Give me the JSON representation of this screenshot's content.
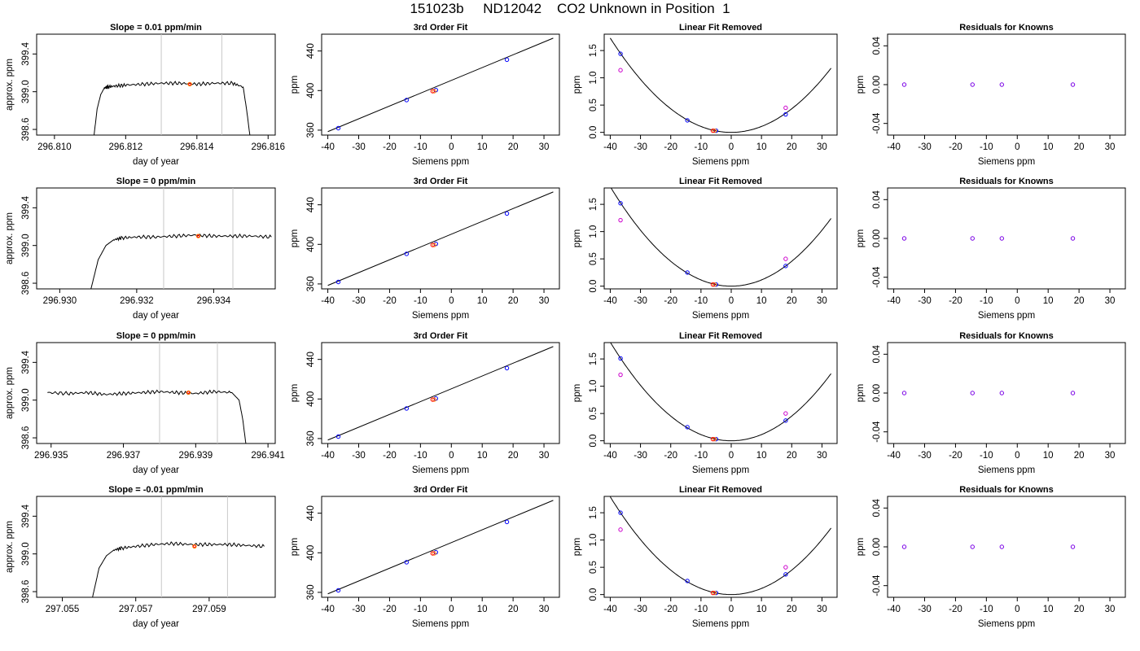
{
  "page_title": "151023b     ND12042    CO2 Unknown in Position  1",
  "labels": {
    "time_xlabel": "day of year",
    "time_ylabel": "approx. ppm",
    "siemens_xlabel": "Siemens ppm",
    "ppm_ylabel": "ppm",
    "fit_title": "3rd Order Fit",
    "linear_title": "Linear Fit Removed",
    "resid_title": "Residuals for Knowns"
  },
  "colors": {
    "line": "#000000",
    "known": "#0000ff",
    "known_alt": "#cc00cc",
    "unknown": "#ff0000",
    "unknown_alt": "#ff8800",
    "window": "#c8c8c8"
  },
  "chart_data": [
    {
      "type": "line",
      "row": 1,
      "title": "Slope =  0.01  ppm/min",
      "xlabel": "day of year",
      "ylabel": "approx. ppm",
      "xlim": [
        296.8095,
        296.8162
      ],
      "ylim": [
        398.54,
        399.61
      ],
      "xticks": [
        296.81,
        296.812,
        296.814,
        296.816
      ],
      "xtick_labels": [
        "296.810",
        "296.812",
        "296.814",
        "296.816"
      ],
      "yticks": [
        398.6,
        399.0,
        399.4
      ],
      "ytick_labels": [
        "398.6",
        "399.0",
        "399.4"
      ],
      "windows": [
        296.813,
        296.8147
      ],
      "series": [
        {
          "x": [
            296.8111,
            296.8112,
            296.8113,
            296.8114,
            296.8115,
            296.8117,
            296.812,
            296.8125,
            296.813,
            296.8135,
            296.814,
            296.8145,
            296.815,
            296.8153,
            296.8154,
            296.8155
          ],
          "y": [
            398.5,
            398.82,
            398.97,
            399.04,
            399.05,
            399.06,
            399.07,
            399.08,
            399.09,
            399.09,
            399.08,
            399.09,
            399.09,
            399.05,
            398.8,
            398.5
          ]
        }
      ],
      "marker": {
        "x": 296.8138,
        "y": 399.08
      }
    },
    {
      "type": "line",
      "row": 2,
      "title": "Slope =  0  ppm/min",
      "xlabel": "day of year",
      "ylabel": "approx. ppm",
      "xlim": [
        296.9294,
        296.9356
      ],
      "ylim": [
        398.54,
        399.61
      ],
      "xticks": [
        296.93,
        296.932,
        296.934
      ],
      "xtick_labels": [
        "296.930",
        "296.932",
        "296.934"
      ],
      "yticks": [
        398.6,
        399.0,
        399.4
      ],
      "ytick_labels": [
        "398.6",
        "399.0",
        "399.4"
      ],
      "windows": [
        296.9327,
        296.9345
      ],
      "series": [
        {
          "x": [
            296.9308,
            296.931,
            296.9312,
            296.9314,
            296.9316,
            296.932,
            296.9325,
            296.933,
            296.9335,
            296.934,
            296.9345,
            296.935,
            296.9355
          ],
          "y": [
            398.52,
            398.85,
            399.0,
            399.06,
            399.08,
            399.09,
            399.09,
            399.1,
            399.11,
            399.1,
            399.1,
            399.1,
            399.09
          ]
        }
      ],
      "marker": {
        "x": 296.9336,
        "y": 399.1
      }
    },
    {
      "type": "line",
      "row": 3,
      "title": "Slope =  0  ppm/min",
      "xlabel": "day of year",
      "ylabel": "approx. ppm",
      "xlim": [
        296.9346,
        296.9412
      ],
      "ylim": [
        398.54,
        399.61
      ],
      "xticks": [
        296.935,
        296.937,
        296.939,
        296.941
      ],
      "xtick_labels": [
        "296.935",
        "296.937",
        "296.939",
        "296.941"
      ],
      "yticks": [
        398.6,
        399.0,
        399.4
      ],
      "ytick_labels": [
        "398.6",
        "399.0",
        "399.4"
      ],
      "windows": [
        296.938,
        296.9396
      ],
      "series": [
        {
          "x": [
            296.9349,
            296.9355,
            296.936,
            296.9365,
            296.937,
            296.9375,
            296.938,
            296.9385,
            296.939,
            296.9395,
            296.94,
            296.9402,
            296.9403,
            296.9404
          ],
          "y": [
            399.08,
            399.07,
            399.08,
            399.06,
            399.07,
            399.08,
            399.09,
            399.08,
            399.07,
            399.09,
            399.08,
            399.0,
            398.8,
            398.5
          ]
        }
      ],
      "marker": {
        "x": 296.9388,
        "y": 399.08
      }
    },
    {
      "type": "line",
      "row": 4,
      "title": "Slope =  -0.01  ppm/min",
      "xlabel": "day of year",
      "ylabel": "approx. ppm",
      "xlim": [
        297.0543,
        297.0608
      ],
      "ylim": [
        398.54,
        399.61
      ],
      "xticks": [
        297.055,
        297.057,
        297.059
      ],
      "xtick_labels": [
        "297.055",
        "297.057",
        "297.059"
      ],
      "yticks": [
        398.6,
        399.0,
        399.4
      ],
      "ytick_labels": [
        "398.6",
        "399.0",
        "399.4"
      ],
      "windows": [
        297.0577,
        297.0595
      ],
      "series": [
        {
          "x": [
            297.0558,
            297.056,
            297.0562,
            297.0564,
            297.0566,
            297.057,
            297.0575,
            297.058,
            297.0585,
            297.059,
            297.0595,
            297.06,
            297.0605
          ],
          "y": [
            398.5,
            398.85,
            398.98,
            399.04,
            399.06,
            399.08,
            399.1,
            399.11,
            399.1,
            399.1,
            399.1,
            399.09,
            399.08
          ]
        }
      ],
      "marker": {
        "x": 297.0586,
        "y": 399.08
      }
    },
    {
      "type": "scatter",
      "row": 1,
      "title": "3rd Order Fit",
      "xlabel": "Siemens ppm",
      "ylabel": "ppm",
      "xlim": [
        -42,
        35
      ],
      "ylim": [
        355,
        457
      ],
      "xticks": [
        -40,
        -30,
        -20,
        -10,
        0,
        10,
        20,
        30
      ],
      "xtick_labels": [
        "-40",
        "-30",
        "-20",
        "-10",
        "0",
        "10",
        "20",
        "30"
      ],
      "yticks": [
        360,
        400,
        440
      ],
      "ytick_labels": [
        "360",
        "400",
        "440"
      ],
      "curve": {
        "x": [
          -40,
          33
        ],
        "y": [
          358.5,
          453
        ]
      },
      "knowns": {
        "x": [
          -36.6,
          -14.5,
          -5.0,
          18.0
        ],
        "y": [
          362,
          390.4,
          400.5,
          431.2
        ]
      },
      "unknowns": {
        "x": [
          -5.8
        ],
        "y": [
          399.4
        ]
      }
    },
    {
      "type": "scatter",
      "row": 2,
      "title": "3rd Order Fit",
      "xlabel": "Siemens ppm",
      "ylabel": "ppm",
      "xlim": [
        -42,
        35
      ],
      "ylim": [
        355,
        457
      ],
      "xticks": [
        -40,
        -30,
        -20,
        -10,
        0,
        10,
        20,
        30
      ],
      "xtick_labels": [
        "-40",
        "-30",
        "-20",
        "-10",
        "0",
        "10",
        "20",
        "30"
      ],
      "yticks": [
        360,
        400,
        440
      ],
      "ytick_labels": [
        "360",
        "400",
        "440"
      ],
      "curve": {
        "x": [
          -40,
          33
        ],
        "y": [
          358.5,
          453
        ]
      },
      "knowns": {
        "x": [
          -36.6,
          -14.5,
          -5.0,
          18.0
        ],
        "y": [
          362,
          390.4,
          400.5,
          431.2
        ]
      },
      "unknowns": {
        "x": [
          -5.8
        ],
        "y": [
          399.4
        ]
      }
    },
    {
      "type": "scatter",
      "row": 3,
      "title": "3rd Order Fit",
      "xlabel": "Siemens ppm",
      "ylabel": "ppm",
      "xlim": [
        -42,
        35
      ],
      "ylim": [
        355,
        457
      ],
      "xticks": [
        -40,
        -30,
        -20,
        -10,
        0,
        10,
        20,
        30
      ],
      "xtick_labels": [
        "-40",
        "-30",
        "-20",
        "-10",
        "0",
        "10",
        "20",
        "30"
      ],
      "yticks": [
        360,
        400,
        440
      ],
      "ytick_labels": [
        "360",
        "400",
        "440"
      ],
      "curve": {
        "x": [
          -40,
          33
        ],
        "y": [
          358.5,
          453
        ]
      },
      "knowns": {
        "x": [
          -36.6,
          -14.5,
          -5.0,
          18.0
        ],
        "y": [
          362,
          390.4,
          400.5,
          431.2
        ]
      },
      "unknowns": {
        "x": [
          -5.8
        ],
        "y": [
          399.4
        ]
      }
    },
    {
      "type": "scatter",
      "row": 4,
      "title": "3rd Order Fit",
      "xlabel": "Siemens ppm",
      "ylabel": "ppm",
      "xlim": [
        -42,
        35
      ],
      "ylim": [
        355,
        457
      ],
      "xticks": [
        -40,
        -30,
        -20,
        -10,
        0,
        10,
        20,
        30
      ],
      "xtick_labels": [
        "-40",
        "-30",
        "-20",
        "-10",
        "0",
        "10",
        "20",
        "30"
      ],
      "yticks": [
        360,
        400,
        440
      ],
      "ytick_labels": [
        "360",
        "400",
        "440"
      ],
      "curve": {
        "x": [
          -40,
          33
        ],
        "y": [
          358.5,
          453
        ]
      },
      "knowns": {
        "x": [
          -36.6,
          -14.5,
          -5.0,
          18.0
        ],
        "y": [
          362,
          390.4,
          400.5,
          431.2
        ]
      },
      "unknowns": {
        "x": [
          -5.8
        ],
        "y": [
          399.4
        ]
      }
    },
    {
      "type": "scatter",
      "row": 1,
      "title": "Linear Fit Removed",
      "xlabel": "Siemens ppm",
      "ylabel": "ppm",
      "xlim": [
        -42,
        35
      ],
      "ylim": [
        -0.05,
        1.8
      ],
      "xticks": [
        -40,
        -30,
        -20,
        -10,
        0,
        10,
        20,
        30
      ],
      "xtick_labels": [
        "-40",
        "-30",
        "-20",
        "-10",
        "0",
        "10",
        "20",
        "30"
      ],
      "yticks": [
        0.0,
        0.5,
        1.0,
        1.5
      ],
      "ytick_labels": [
        "0.0",
        "0.5",
        "1.0",
        "1.5"
      ],
      "curve_coef": 0.00108,
      "knowns": {
        "x": [
          -36.6,
          -14.5,
          -5.0,
          18.0
        ],
        "y": [
          1.44,
          0.22,
          0.03,
          0.33
        ]
      },
      "knowns_alt": {
        "x": [
          -36.6,
          18.0
        ],
        "y": [
          1.14,
          0.45
        ]
      },
      "unknowns": {
        "x": [
          -5.8
        ],
        "y": [
          0.03
        ]
      }
    },
    {
      "type": "scatter",
      "row": 2,
      "title": "Linear Fit Removed",
      "xlabel": "Siemens ppm",
      "ylabel": "ppm",
      "xlim": [
        -42,
        35
      ],
      "ylim": [
        -0.05,
        1.8
      ],
      "xticks": [
        -40,
        -30,
        -20,
        -10,
        0,
        10,
        20,
        30
      ],
      "xtick_labels": [
        "-40",
        "-30",
        "-20",
        "-10",
        "0",
        "10",
        "20",
        "30"
      ],
      "yticks": [
        0.0,
        0.5,
        1.0,
        1.5
      ],
      "ytick_labels": [
        "0.0",
        "0.5",
        "1.0",
        "1.5"
      ],
      "curve_coef": 0.00114,
      "knowns": {
        "x": [
          -36.6,
          -14.5,
          -5.0,
          18.0
        ],
        "y": [
          1.52,
          0.25,
          0.03,
          0.37
        ]
      },
      "knowns_alt": {
        "x": [
          -36.6,
          18.0
        ],
        "y": [
          1.21,
          0.5
        ]
      },
      "unknowns": {
        "x": [
          -5.8
        ],
        "y": [
          0.03
        ]
      }
    },
    {
      "type": "scatter",
      "row": 3,
      "title": "Linear Fit Removed",
      "xlabel": "Siemens ppm",
      "ylabel": "ppm",
      "xlim": [
        -42,
        35
      ],
      "ylim": [
        -0.05,
        1.8
      ],
      "xticks": [
        -40,
        -30,
        -20,
        -10,
        0,
        10,
        20,
        30
      ],
      "xtick_labels": [
        "-40",
        "-30",
        "-20",
        "-10",
        "0",
        "10",
        "20",
        "30"
      ],
      "yticks": [
        0.0,
        0.5,
        1.0,
        1.5
      ],
      "ytick_labels": [
        "0.0",
        "0.5",
        "1.0",
        "1.5"
      ],
      "curve_coef": 0.00113,
      "knowns": {
        "x": [
          -36.6,
          -14.5,
          -5.0,
          18.0
        ],
        "y": [
          1.51,
          0.25,
          0.03,
          0.37
        ]
      },
      "knowns_alt": {
        "x": [
          -36.6,
          18.0
        ],
        "y": [
          1.21,
          0.5
        ]
      },
      "unknowns": {
        "x": [
          -5.8
        ],
        "y": [
          0.03
        ]
      }
    },
    {
      "type": "scatter",
      "row": 4,
      "title": "Linear Fit Removed",
      "xlabel": "Siemens ppm",
      "ylabel": "ppm",
      "xlim": [
        -42,
        35
      ],
      "ylim": [
        -0.05,
        1.8
      ],
      "xticks": [
        -40,
        -30,
        -20,
        -10,
        0,
        10,
        20,
        30
      ],
      "xtick_labels": [
        "-40",
        "-30",
        "-20",
        "-10",
        "0",
        "10",
        "20",
        "30"
      ],
      "yticks": [
        0.0,
        0.5,
        1.0,
        1.5
      ],
      "ytick_labels": [
        "0.0",
        "0.5",
        "1.0",
        "1.5"
      ],
      "curve_coef": 0.00112,
      "knowns": {
        "x": [
          -36.6,
          -14.5,
          -5.0,
          18.0
        ],
        "y": [
          1.5,
          0.25,
          0.03,
          0.37
        ]
      },
      "knowns_alt": {
        "x": [
          -36.6,
          18.0
        ],
        "y": [
          1.19,
          0.5
        ]
      },
      "unknowns": {
        "x": [
          -5.8
        ],
        "y": [
          0.03
        ]
      }
    },
    {
      "type": "scatter",
      "row": 1,
      "title": "Residuals for Knowns",
      "xlabel": "Siemens ppm",
      "ylabel": "ppm",
      "xlim": [
        -42,
        35
      ],
      "ylim": [
        -0.052,
        0.052
      ],
      "xticks": [
        -40,
        -30,
        -20,
        -10,
        0,
        10,
        20,
        30
      ],
      "xtick_labels": [
        "-40",
        "-30",
        "-20",
        "-10",
        "0",
        "10",
        "20",
        "30"
      ],
      "yticks": [
        -0.04,
        0.0,
        0.04
      ],
      "ytick_labels": [
        "-0.04",
        "0.00",
        "0.04"
      ],
      "knowns": {
        "x": [
          -36.6,
          -14.5,
          -5.0,
          18.0
        ],
        "y": [
          0,
          0,
          0,
          0
        ]
      }
    },
    {
      "type": "scatter",
      "row": 2,
      "title": "Residuals for Knowns",
      "xlabel": "Siemens ppm",
      "ylabel": "ppm",
      "xlim": [
        -42,
        35
      ],
      "ylim": [
        -0.052,
        0.052
      ],
      "xticks": [
        -40,
        -30,
        -20,
        -10,
        0,
        10,
        20,
        30
      ],
      "xtick_labels": [
        "-40",
        "-30",
        "-20",
        "-10",
        "0",
        "10",
        "20",
        "30"
      ],
      "yticks": [
        -0.04,
        0.0,
        0.04
      ],
      "ytick_labels": [
        "-0.04",
        "0.00",
        "0.04"
      ],
      "knowns": {
        "x": [
          -36.6,
          -14.5,
          -5.0,
          18.0
        ],
        "y": [
          0,
          0,
          0,
          0
        ]
      }
    },
    {
      "type": "scatter",
      "row": 3,
      "title": "Residuals for Knowns",
      "xlabel": "Siemens ppm",
      "ylabel": "ppm",
      "xlim": [
        -42,
        35
      ],
      "ylim": [
        -0.052,
        0.052
      ],
      "xticks": [
        -40,
        -30,
        -20,
        -10,
        0,
        10,
        20,
        30
      ],
      "xtick_labels": [
        "-40",
        "-30",
        "-20",
        "-10",
        "0",
        "10",
        "20",
        "30"
      ],
      "yticks": [
        -0.04,
        0.0,
        0.04
      ],
      "ytick_labels": [
        "-0.04",
        "0.00",
        "0.04"
      ],
      "knowns": {
        "x": [
          -36.6,
          -14.5,
          -5.0,
          18.0
        ],
        "y": [
          0,
          0,
          0,
          0
        ]
      }
    },
    {
      "type": "scatter",
      "row": 4,
      "title": "Residuals for Knowns",
      "xlabel": "Siemens ppm",
      "ylabel": "ppm",
      "xlim": [
        -42,
        35
      ],
      "ylim": [
        -0.052,
        0.052
      ],
      "xticks": [
        -40,
        -30,
        -20,
        -10,
        0,
        10,
        20,
        30
      ],
      "xtick_labels": [
        "-40",
        "-30",
        "-20",
        "-10",
        "0",
        "10",
        "20",
        "30"
      ],
      "yticks": [
        -0.04,
        0.0,
        0.04
      ],
      "ytick_labels": [
        "-0.04",
        "0.00",
        "0.04"
      ],
      "knowns": {
        "x": [
          -36.6,
          -14.5,
          -5.0,
          18.0
        ],
        "y": [
          0,
          0,
          0,
          0
        ]
      }
    }
  ]
}
